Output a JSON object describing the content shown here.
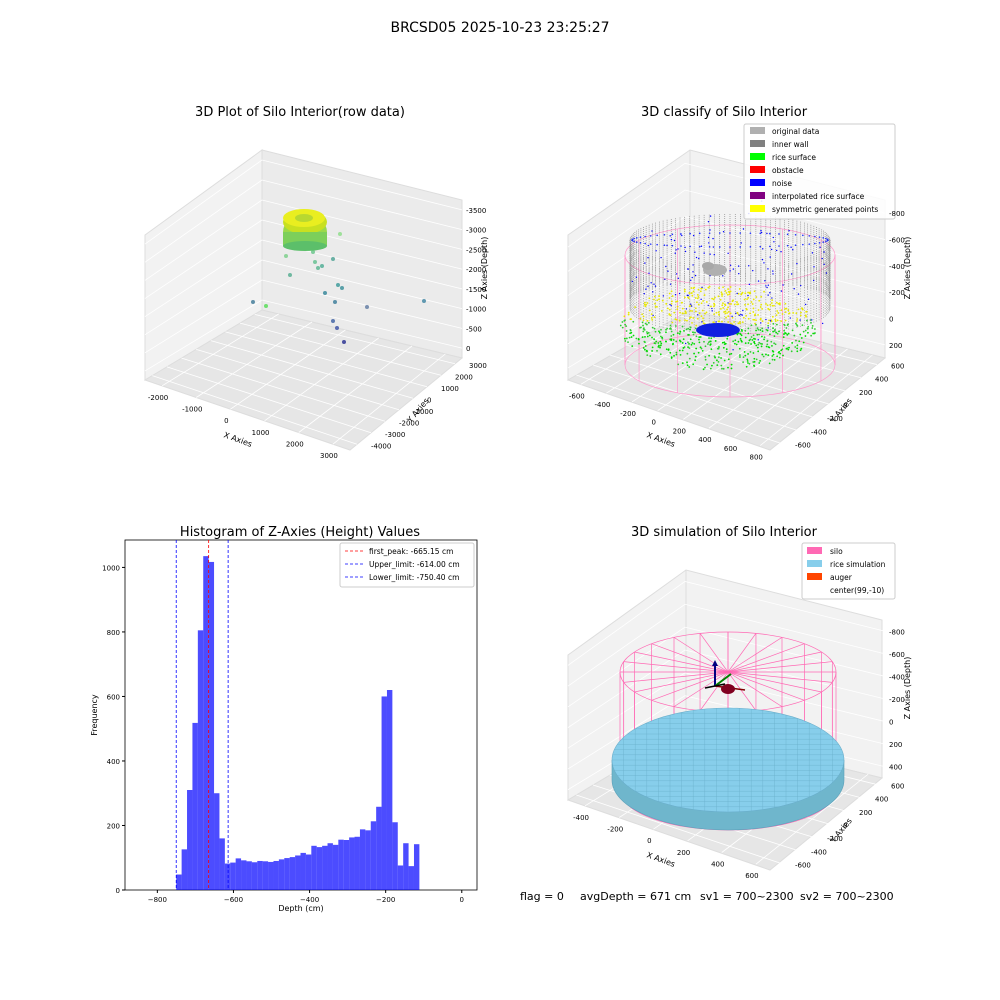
{
  "suptitle": "BRCSD05 2025-10-23 23:25:27",
  "footer": {
    "flag": "flag = 0",
    "avgDepth": "avgDepth = 671 cm",
    "sv1": "sv1 = 700~2300",
    "sv2": "sv2 = 700~2300"
  },
  "chart_data": [
    {
      "type": "scatter",
      "title": "3D Plot of Silo Interior(row data)",
      "xlabel": "X Axies",
      "ylabel": "Y Axies",
      "zlabel": "Z Axies (Depth)",
      "x_ticks": [
        "-2000",
        "-1000",
        "0",
        "1000",
        "2000",
        "3000"
      ],
      "y_ticks": [
        "-4000",
        "-3000",
        "-2000",
        "-1000",
        "0",
        "1000",
        "2000",
        "3000"
      ],
      "z_ticks": [
        "0",
        "-500",
        "-1000",
        "-1500",
        "-2000",
        "-2500",
        "-3000",
        "-3500"
      ],
      "grid": true
    },
    {
      "type": "scatter",
      "title": "3D classify of Silo Interior",
      "xlabel": "X Axies",
      "ylabel": "Y Axies",
      "zlabel": "Z Axies (Depth)",
      "x_ticks": [
        "-600",
        "-400",
        "-200",
        "0",
        "200",
        "400",
        "600",
        "800"
      ],
      "y_ticks": [
        "-600",
        "-400",
        "-200",
        "0",
        "200",
        "400",
        "600"
      ],
      "z_ticks": [
        "200",
        "0",
        "-200",
        "-400",
        "-600",
        "-800"
      ],
      "legend_position": "top-right",
      "legend": [
        {
          "label": "original data",
          "color": "#b0b0b0"
        },
        {
          "label": "inner wall",
          "color": "#808080"
        },
        {
          "label": "rice surface",
          "color": "#00ff00"
        },
        {
          "label": "obstacle",
          "color": "#ff0000"
        },
        {
          "label": "noise",
          "color": "#0000ff"
        },
        {
          "label": "interpolated rice surface",
          "color": "#800080"
        },
        {
          "label": "symmetric generated points",
          "color": "#ffff00"
        }
      ],
      "grid": true
    },
    {
      "type": "bar",
      "title": "Histogram of Z-Axies (Height) Values",
      "xlabel": "Depth (cm)",
      "ylabel": "Frequency",
      "xlim": [
        -885,
        40
      ],
      "ylim": [
        0,
        1085
      ],
      "x_ticks": [
        -800,
        -600,
        -400,
        -200,
        0
      ],
      "y_ticks": [
        0,
        200,
        400,
        600,
        800,
        1000
      ],
      "bin_width": 14.2,
      "bins": [
        [
          -750.4,
          48
        ],
        [
          -736.2,
          126
        ],
        [
          -722.0,
          310
        ],
        [
          -707.8,
          518
        ],
        [
          -693.6,
          805
        ],
        [
          -679.4,
          1035
        ],
        [
          -665.2,
          1017
        ],
        [
          -651.0,
          300
        ],
        [
          -636.8,
          160
        ],
        [
          -622.6,
          82
        ],
        [
          -608.4,
          85
        ],
        [
          -594.2,
          98
        ],
        [
          -580.0,
          92
        ],
        [
          -565.8,
          89
        ],
        [
          -551.6,
          86
        ],
        [
          -537.4,
          90
        ],
        [
          -523.2,
          89
        ],
        [
          -509.0,
          87
        ],
        [
          -494.8,
          90
        ],
        [
          -480.6,
          95
        ],
        [
          -466.4,
          99
        ],
        [
          -452.2,
          102
        ],
        [
          -438.0,
          107
        ],
        [
          -423.8,
          115
        ],
        [
          -409.6,
          110
        ],
        [
          -395.4,
          137
        ],
        [
          -381.2,
          133
        ],
        [
          -367.0,
          137
        ],
        [
          -352.8,
          145
        ],
        [
          -338.6,
          140
        ],
        [
          -324.4,
          156
        ],
        [
          -310.2,
          155
        ],
        [
          -296.0,
          163
        ],
        [
          -281.8,
          165
        ],
        [
          -267.6,
          188
        ],
        [
          -253.4,
          185
        ],
        [
          -239.2,
          213
        ],
        [
          -225.0,
          258
        ],
        [
          -210.8,
          600
        ],
        [
          -196.6,
          620
        ],
        [
          -182.4,
          210
        ],
        [
          -168.2,
          76
        ],
        [
          -154.0,
          145
        ],
        [
          -139.8,
          74
        ],
        [
          -125.6,
          142
        ]
      ],
      "bar_color": "#0000ff",
      "vlines": [
        {
          "label": "first_peak: -665.15 cm",
          "x": -665.15,
          "color": "#ff0000"
        },
        {
          "label": "Upper_limit: -614.00 cm",
          "x": -614.0,
          "color": "#0000ff"
        },
        {
          "label": "Lower_limit: -750.40 cm",
          "x": -750.4,
          "color": "#0000ff"
        }
      ],
      "legend_position": "top-right"
    },
    {
      "type": "scatter",
      "title": "3D simulation of Silo Interior",
      "xlabel": "X Axies",
      "ylabel": "Y Axies",
      "zlabel": "Z Axies (Depth)",
      "x_ticks": [
        "-400",
        "-200",
        "0",
        "200",
        "400",
        "600"
      ],
      "y_ticks": [
        "-600",
        "-400",
        "-200",
        "0",
        "200",
        "400",
        "600"
      ],
      "z_ticks": [
        "400",
        "200",
        "0",
        "-200",
        "-400",
        "-600",
        "-800"
      ],
      "legend_position": "top-right",
      "legend": [
        {
          "label": "silo",
          "color": "#ff69b4"
        },
        {
          "label": "rice simulation",
          "color": "#87ceeb"
        },
        {
          "label": "auger",
          "color": "#ff4500"
        },
        {
          "label": "center(99,-10)",
          "color": ""
        }
      ],
      "grid": true
    }
  ]
}
